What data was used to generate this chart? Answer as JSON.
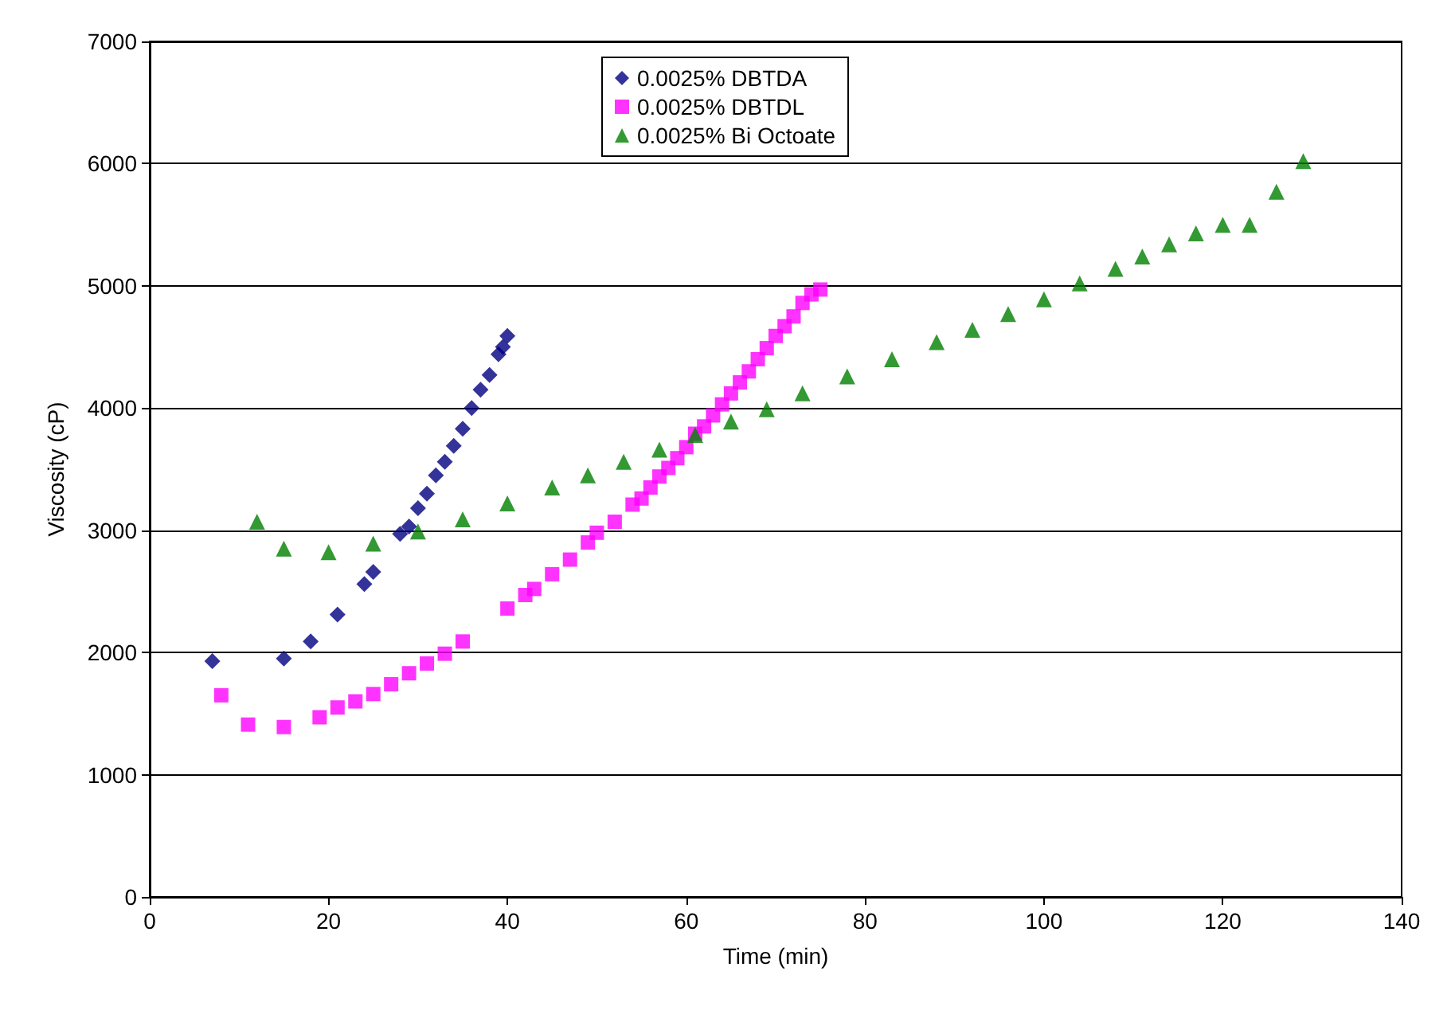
{
  "chart_data": {
    "type": "scatter",
    "xlabel": "Time (min)",
    "ylabel": "Viscosity (cP)",
    "xlim": [
      0,
      140
    ],
    "xticks": [
      0,
      20,
      40,
      60,
      80,
      100,
      120,
      140
    ],
    "ylim": [
      0,
      7000
    ],
    "yticks": [
      0,
      1000,
      2000,
      3000,
      4000,
      5000,
      6000,
      7000
    ],
    "grid": "y",
    "legend": "top",
    "series": [
      {
        "name": "0.0025% DBTDA",
        "color": "#000080",
        "marker": "diamond",
        "x": [
          7,
          15,
          18,
          21,
          24,
          25,
          28,
          29,
          30,
          31,
          32,
          33,
          34,
          35,
          36,
          37,
          38,
          39,
          39.5,
          40
        ],
        "values": [
          1930,
          1950,
          2090,
          2310,
          2560,
          2660,
          2970,
          3030,
          3180,
          3300,
          3450,
          3560,
          3690,
          3830,
          4000,
          4150,
          4270,
          4440,
          4500,
          4590
        ]
      },
      {
        "name": "0.0025% DBTDL",
        "color": "#ff00ff",
        "marker": "square",
        "x": [
          8,
          11,
          15,
          19,
          21,
          23,
          25,
          27,
          29,
          31,
          33,
          35,
          40,
          42,
          43,
          45,
          47,
          49,
          50,
          52,
          54,
          55,
          56,
          57,
          58,
          59,
          60,
          61,
          62,
          63,
          64,
          65,
          66,
          67,
          68,
          69,
          70,
          71,
          72,
          73,
          74,
          75
        ],
        "values": [
          1650,
          1410,
          1390,
          1470,
          1550,
          1600,
          1660,
          1740,
          1830,
          1910,
          1990,
          2090,
          2360,
          2470,
          2520,
          2640,
          2760,
          2900,
          2980,
          3070,
          3210,
          3260,
          3350,
          3440,
          3510,
          3590,
          3680,
          3790,
          3850,
          3940,
          4030,
          4120,
          4210,
          4300,
          4400,
          4490,
          4590,
          4670,
          4750,
          4860,
          4930,
          4970
        ]
      },
      {
        "name": "0.0025% Bi Octoate",
        "color": "#008000",
        "marker": "triangle",
        "x": [
          12,
          15,
          20,
          25,
          30,
          35,
          40,
          45,
          49,
          53,
          57,
          61,
          65,
          69,
          73,
          78,
          83,
          88,
          92,
          96,
          100,
          104,
          108,
          111,
          114,
          117,
          120,
          123,
          126,
          129
        ],
        "values": [
          3070,
          2850,
          2820,
          2890,
          2990,
          3090,
          3220,
          3350,
          3450,
          3560,
          3660,
          3780,
          3890,
          3990,
          4120,
          4260,
          4400,
          4540,
          4640,
          4770,
          4890,
          5020,
          5140,
          5240,
          5340,
          5430,
          5500,
          5500,
          5770,
          6020
        ]
      }
    ]
  }
}
